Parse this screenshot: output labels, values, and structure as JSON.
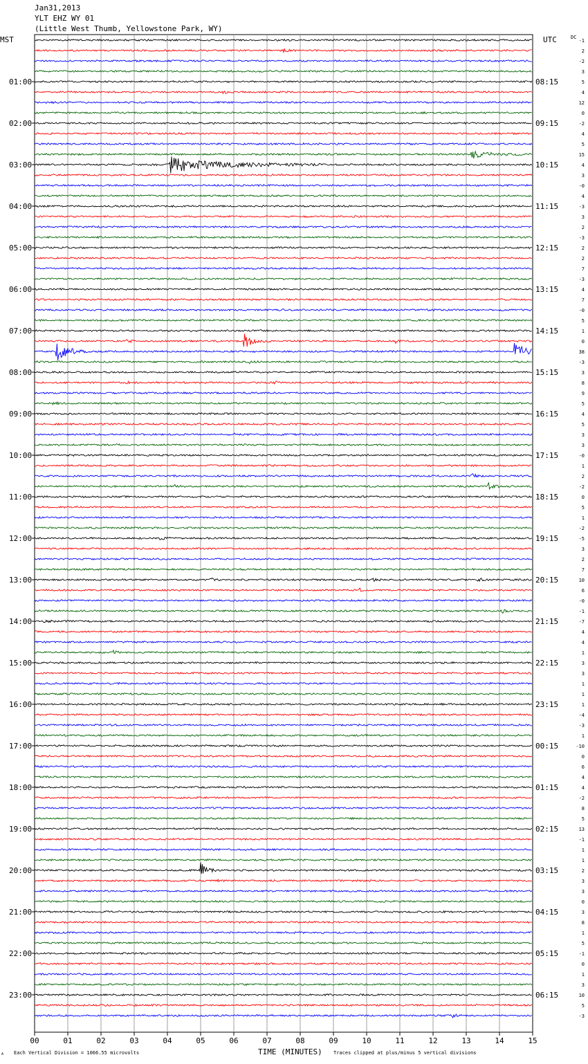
{
  "header": {
    "date": "Jan31,2013",
    "station": "YLT EHZ WY 01",
    "location": "(Little West Thumb, Yellowstone Park, WY)"
  },
  "labels": {
    "left_tz": "MST",
    "right_tz": "UTC",
    "dc": "DC",
    "x_axis": "TIME (MINUTES)",
    "footer_left": "Each Vertical Division = 1066.55 microvolts",
    "footer_right": "Traces clipped at plus/minus 5 vertical divisions",
    "corner_mark": "A"
  },
  "colors": {
    "black": "#000000",
    "red": "#ff0000",
    "blue": "#0000ff",
    "green": "#006400"
  },
  "chart_data": {
    "type": "line",
    "title": "YLT EHZ WY 01",
    "xlabel": "TIME (MINUTES)",
    "ylabel": "",
    "x_ticks": [
      "00",
      "01",
      "02",
      "03",
      "04",
      "05",
      "06",
      "07",
      "08",
      "09",
      "10",
      "11",
      "12",
      "13",
      "14",
      "15"
    ],
    "xlim": [
      0,
      15
    ],
    "grid": true,
    "trace_color_cycle": [
      "black",
      "red",
      "blue",
      "green"
    ],
    "left_hour_labels": [
      "01:00",
      "02:00",
      "03:00",
      "04:00",
      "05:00",
      "06:00",
      "07:00",
      "08:00",
      "09:00",
      "10:00",
      "11:00",
      "12:00",
      "13:00",
      "14:00",
      "15:00",
      "16:00",
      "17:00",
      "18:00",
      "19:00",
      "20:00",
      "21:00",
      "22:00",
      "23:00"
    ],
    "right_hour_labels": [
      "08:15",
      "09:15",
      "10:15",
      "11:15",
      "12:15",
      "13:15",
      "14:15",
      "15:15",
      "16:15",
      "17:15",
      "18:15",
      "19:15",
      "20:15",
      "21:15",
      "22:15",
      "23:15",
      "00:15",
      "01:15",
      "02:15",
      "03:15",
      "04:15",
      "05:15",
      "06:15"
    ],
    "dc_offsets": [
      "-1",
      "2",
      "-2",
      "3",
      "5",
      "4",
      "12",
      "0",
      "-2",
      "4",
      "5",
      "15",
      "4",
      "3",
      "-0",
      "4",
      "-3",
      "3",
      "2",
      "-3",
      "2",
      "2",
      "7",
      "-3",
      "4",
      "7",
      "-0",
      "5",
      "1",
      "0",
      "38",
      "-3",
      "3",
      "8",
      "9",
      "5",
      "4",
      "5",
      "3",
      "3",
      "-0",
      "1",
      "2",
      "-2",
      "0",
      "5",
      "1",
      "-2",
      "-5",
      "3",
      "2",
      "7",
      "10",
      "6",
      "-0",
      "-1",
      "-7",
      "4",
      "4",
      "1",
      "3",
      "3",
      "1",
      "1",
      "1",
      "-4",
      "-3",
      "1",
      "-10",
      "0",
      "6",
      "4",
      "4",
      "-2",
      "8",
      "5",
      "13",
      "-1",
      "1",
      "1",
      "2",
      "3",
      "3",
      "0",
      "3",
      "8",
      "1",
      "5",
      "-1",
      "0",
      "1",
      "3",
      "10",
      "5",
      "-3"
    ],
    "events": [
      {
        "trace": 1,
        "minute": 7.5,
        "amplitude": 0.6
      },
      {
        "trace": 5,
        "minute": 5.7,
        "amplitude": 0.6
      },
      {
        "trace": 11,
        "minute": 13.2,
        "amplitude": 1.5,
        "duration": 1.8
      },
      {
        "trace": 12,
        "minute": 4.1,
        "amplitude": 3.0,
        "duration": 4.5
      },
      {
        "trace": 29,
        "minute": 2.8,
        "amplitude": 0.5
      },
      {
        "trace": 29,
        "minute": 6.3,
        "amplitude": 3.0,
        "duration": 0.8
      },
      {
        "trace": 29,
        "minute": 10.9,
        "amplitude": 0.6
      },
      {
        "trace": 30,
        "minute": 0.7,
        "amplitude": 3.5,
        "duration": 1.0
      },
      {
        "trace": 30,
        "minute": 14.5,
        "amplitude": 3.2,
        "duration": 0.8
      },
      {
        "trace": 31,
        "minute": 6.5,
        "amplitude": 0.5
      },
      {
        "trace": 33,
        "minute": 2.8,
        "amplitude": 0.5
      },
      {
        "trace": 33,
        "minute": 7.2,
        "amplitude": 0.5
      },
      {
        "trace": 35,
        "minute": 0.6,
        "amplitude": 0.6
      },
      {
        "trace": 38,
        "minute": 6.0,
        "amplitude": 0.5
      },
      {
        "trace": 42,
        "minute": 13.2,
        "amplitude": 0.6
      },
      {
        "trace": 43,
        "minute": 13.7,
        "amplitude": 1.4
      },
      {
        "trace": 43,
        "minute": 4.2,
        "amplitude": 0.5
      },
      {
        "trace": 48,
        "minute": 3.8,
        "amplitude": 0.6
      },
      {
        "trace": 52,
        "minute": 13.4,
        "amplitude": 0.6
      },
      {
        "trace": 52,
        "minute": 5.3,
        "amplitude": 0.5
      },
      {
        "trace": 52,
        "minute": 10.2,
        "amplitude": 0.5
      },
      {
        "trace": 53,
        "minute": 9.8,
        "amplitude": 0.5
      },
      {
        "trace": 55,
        "minute": 14.1,
        "amplitude": 0.6
      },
      {
        "trace": 56,
        "minute": 0.3,
        "amplitude": 0.6
      },
      {
        "trace": 59,
        "minute": 2.4,
        "amplitude": 0.6
      },
      {
        "trace": 73,
        "minute": 12.6,
        "amplitude": 0.6
      },
      {
        "trace": 80,
        "minute": 5.0,
        "amplitude": 3.0,
        "duration": 0.5
      },
      {
        "trace": 81,
        "minute": 5.5,
        "amplitude": 0.5
      },
      {
        "trace": 85,
        "minute": 14.1,
        "amplitude": 0.6
      },
      {
        "trace": 86,
        "minute": 0.5,
        "amplitude": 0.5
      },
      {
        "trace": 94,
        "minute": 12.6,
        "amplitude": 0.5
      }
    ]
  }
}
